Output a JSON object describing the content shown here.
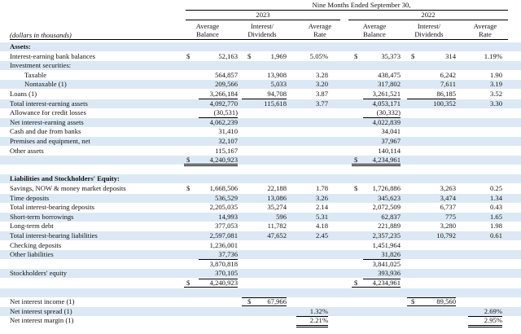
{
  "header": {
    "period": "Nine Months Ended September 30,",
    "years": [
      "2023",
      "2022"
    ],
    "units_label": "(dollars in thousands)",
    "columns": [
      [
        "Average",
        "Balance"
      ],
      [
        "Interest/",
        "Dividends"
      ],
      [
        "Average",
        "Rate"
      ],
      [
        "Average",
        "Balance"
      ],
      [
        "Interest/",
        "Dividends"
      ],
      [
        "Average",
        "Rate"
      ]
    ]
  },
  "currency_symbol": "$",
  "rows": [
    {
      "label": "Assets:",
      "style": "bold",
      "shade": true
    },
    {
      "label": "Interest-earning bank balances",
      "style": "",
      "shade": false,
      "cells": [
        "52,163",
        "1,969",
        "5.05%",
        "35,373",
        "314",
        "1.19%"
      ],
      "dollars": [
        true,
        true,
        false,
        true,
        true,
        false
      ]
    },
    {
      "label": "Investment securities:",
      "style": "",
      "shade": true
    },
    {
      "label": "Taxable",
      "style": "ind2",
      "shade": false,
      "cells": [
        "564,857",
        "13,908",
        "3.28",
        "438,475",
        "6,242",
        "1.90"
      ]
    },
    {
      "label": "Nontaxable (1)",
      "style": "ind2",
      "shade": true,
      "cells": [
        "209,566",
        "5,033",
        "3.20",
        "317,802",
        "7,611",
        "3.19"
      ]
    },
    {
      "label": "Loans (1)",
      "style": "",
      "shade": false,
      "cells": [
        "3,266,184",
        "94,708",
        "3.87",
        "3,261,521",
        "86,185",
        "3.52"
      ]
    },
    {
      "label": "Total interest-earning assets",
      "style": "",
      "shade": true,
      "cells": [
        "4,092,770",
        "115,618",
        "3.77",
        "4,053,171",
        "100,352",
        "3.30"
      ]
    },
    {
      "label": "Allowance for credit losses",
      "style": "",
      "shade": false,
      "cells": [
        "(30,531)",
        "",
        "",
        "(30,332)",
        "",
        ""
      ]
    },
    {
      "label": "Net interest-earning assets",
      "style": "",
      "shade": true,
      "cells": [
        "4,062,239",
        "",
        "",
        "4,022,839",
        "",
        ""
      ]
    },
    {
      "label": "Cash and due from banks",
      "style": "",
      "shade": false,
      "cells": [
        "31,410",
        "",
        "",
        "34,041",
        "",
        ""
      ]
    },
    {
      "label": "Premises and equipment, net",
      "style": "",
      "shade": true,
      "cells": [
        "32,107",
        "",
        "",
        "37,967",
        "",
        ""
      ]
    },
    {
      "label": "Other assets",
      "style": "",
      "shade": false,
      "cells": [
        "115,167",
        "",
        "",
        "140,114",
        "",
        ""
      ]
    },
    {
      "label": "",
      "style": "",
      "shade": true,
      "cells": [
        "4,240,923",
        "",
        "",
        "4,234,961",
        "",
        ""
      ],
      "dollars": [
        true,
        false,
        false,
        true,
        false,
        false
      ]
    },
    {
      "label": "",
      "style": "",
      "shade": false
    },
    {
      "label": "Liabilities and Stockholders' Equity:",
      "style": "bold",
      "shade": true
    },
    {
      "label": "Savings, NOW & money market deposits",
      "style": "",
      "shade": false,
      "cells": [
        "1,668,506",
        "22,188",
        "1.78",
        "1,726,886",
        "3,263",
        "0.25"
      ],
      "dollars": [
        true,
        false,
        false,
        true,
        false,
        false
      ]
    },
    {
      "label": "Time deposits",
      "style": "",
      "shade": true,
      "cells": [
        "536,529",
        "13,086",
        "3.26",
        "345,623",
        "3,474",
        "1.34"
      ]
    },
    {
      "label": "Total interest-bearing deposits",
      "style": "",
      "shade": false,
      "cells": [
        "2,205,035",
        "35,274",
        "2.14",
        "2,072,509",
        "6,737",
        "0.43"
      ]
    },
    {
      "label": "Short-term borrowings",
      "style": "",
      "shade": true,
      "cells": [
        "14,993",
        "596",
        "5.31",
        "62,837",
        "775",
        "1.65"
      ]
    },
    {
      "label": "Long-term debt",
      "style": "",
      "shade": false,
      "cells": [
        "377,053",
        "11,782",
        "4.18",
        "221,889",
        "3,280",
        "1.98"
      ]
    },
    {
      "label": "Total interest-bearing liabilities",
      "style": "",
      "shade": true,
      "cells": [
        "2,597,081",
        "47,652",
        "2.45",
        "2,357,235",
        "10,792",
        "0.61"
      ]
    },
    {
      "label": "Checking deposits",
      "style": "",
      "shade": false,
      "cells": [
        "1,236,001",
        "",
        "",
        "1,451,964",
        "",
        ""
      ]
    },
    {
      "label": "Other liabilities",
      "style": "",
      "shade": true,
      "cells": [
        "37,736",
        "",
        "",
        "31,826",
        "",
        ""
      ]
    },
    {
      "label": "",
      "style": "",
      "shade": false,
      "cells": [
        "3,870,818",
        "",
        "",
        "3,841,025",
        "",
        ""
      ]
    },
    {
      "label": "Stockholders' equity",
      "style": "",
      "shade": true,
      "cells": [
        "370,105",
        "",
        "",
        "393,936",
        "",
        ""
      ]
    },
    {
      "label": "",
      "style": "",
      "shade": false,
      "cells": [
        "4,240,923",
        "",
        "",
        "4,234,961",
        "",
        ""
      ],
      "dollars": [
        true,
        false,
        false,
        true,
        false,
        false
      ]
    },
    {
      "label": "",
      "style": "",
      "shade": true
    },
    {
      "label": "Net interest income (1)",
      "style": "",
      "shade": false,
      "cells": [
        "",
        "67,966",
        "",
        "",
        "89,560",
        ""
      ],
      "dollars": [
        false,
        true,
        false,
        false,
        true,
        false
      ]
    },
    {
      "label": "Net interest spread (1)",
      "style": "",
      "shade": true,
      "cells": [
        "",
        "",
        "1.32%",
        "",
        "",
        "2.69%"
      ]
    },
    {
      "label": "Net interest margin (1)",
      "style": "",
      "shade": false,
      "cells": [
        "",
        "",
        "2.21%",
        "",
        "",
        "2.95%"
      ]
    }
  ]
}
